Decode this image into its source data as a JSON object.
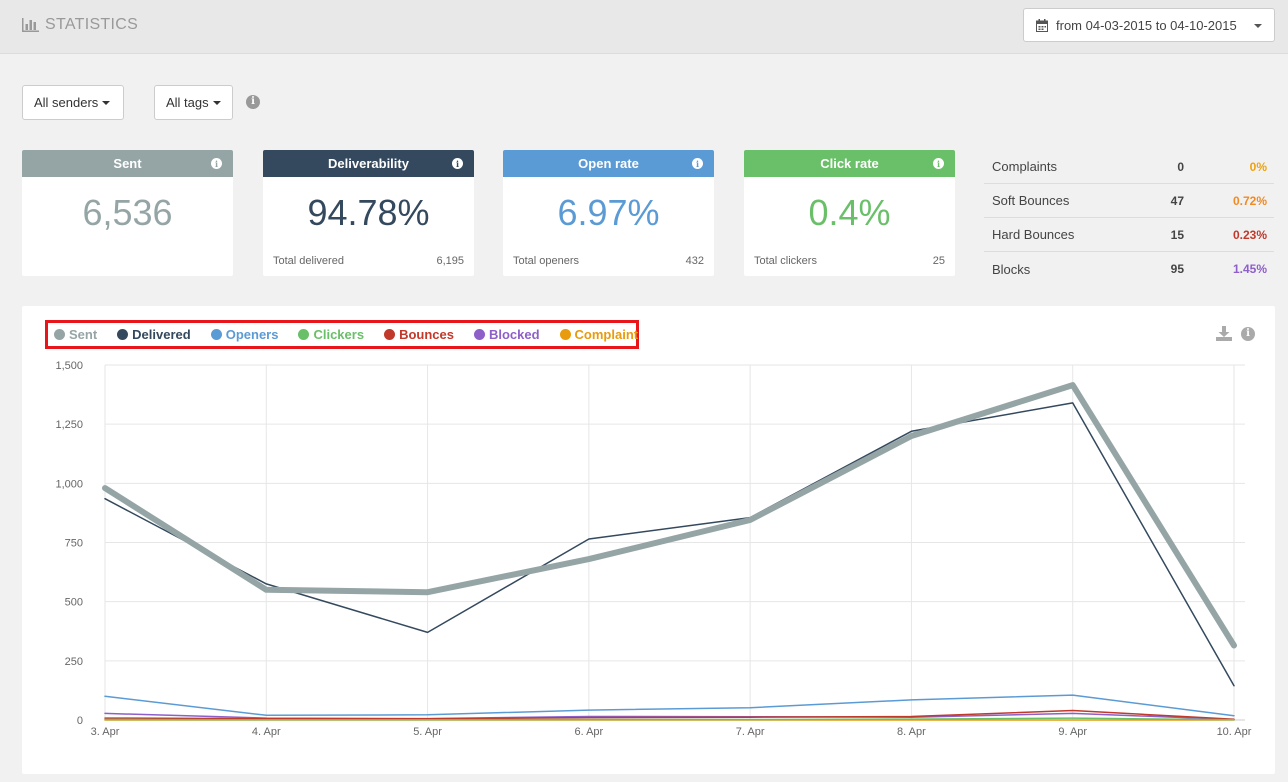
{
  "header": {
    "title": "STATISTICS",
    "date_range": "from 04-03-2015 to 04-10-2015"
  },
  "filters": {
    "senders": "All senders",
    "tags": "All tags"
  },
  "cards": [
    {
      "label": "Sent",
      "value": "6,536",
      "color": "#95a5a6",
      "foot_label": "",
      "foot_value": ""
    },
    {
      "label": "Deliverability",
      "value": "94.78%",
      "color": "#34495e",
      "foot_label": "Total delivered",
      "foot_value": "6,195"
    },
    {
      "label": "Open rate",
      "value": "6.97%",
      "color": "#5b9bd5",
      "foot_label": "Total openers",
      "foot_value": "432"
    },
    {
      "label": "Click rate",
      "value": "0.4%",
      "color": "#6abf69",
      "foot_label": "Total clickers",
      "foot_value": "25"
    }
  ],
  "side_stats": [
    {
      "label": "Complaints",
      "count": "0",
      "pct": "0%",
      "color": "#f0a30a"
    },
    {
      "label": "Soft Bounces",
      "count": "47",
      "pct": "0.72%",
      "color": "#f08a24"
    },
    {
      "label": "Hard Bounces",
      "count": "15",
      "pct": "0.23%",
      "color": "#c0392b"
    },
    {
      "label": "Blocks",
      "count": "95",
      "pct": "1.45%",
      "color": "#8e5fc9"
    }
  ],
  "legend": [
    {
      "name": "Sent",
      "color": "#95a5a6"
    },
    {
      "name": "Delivered",
      "color": "#34495e"
    },
    {
      "name": "Openers",
      "color": "#5b9bd5"
    },
    {
      "name": "Clickers",
      "color": "#6abf69"
    },
    {
      "name": "Bounces",
      "color": "#c0392b"
    },
    {
      "name": "Blocked",
      "color": "#8e5fc9"
    },
    {
      "name": "Complaint",
      "color": "#e89b0c"
    }
  ],
  "chart_data": {
    "type": "line",
    "categories": [
      "3. Apr",
      "4. Apr",
      "5. Apr",
      "6. Apr",
      "7. Apr",
      "8. Apr",
      "9. Apr",
      "10. Apr"
    ],
    "ylim": [
      0,
      1500
    ],
    "yticks": [
      "0",
      "250",
      "500",
      "750",
      "1,000",
      "1,250",
      "1,500"
    ],
    "grid": true,
    "series": [
      {
        "name": "Sent",
        "color": "#95a5a6",
        "width": 6,
        "values": [
          980,
          550,
          540,
          680,
          845,
          1200,
          1415,
          315
        ]
      },
      {
        "name": "Delivered",
        "color": "#34495e",
        "width": 1.5,
        "values": [
          935,
          575,
          370,
          765,
          855,
          1220,
          1340,
          145
        ]
      },
      {
        "name": "Openers",
        "color": "#5b9bd5",
        "width": 1.5,
        "values": [
          100,
          20,
          22,
          42,
          52,
          85,
          105,
          18
        ]
      },
      {
        "name": "Clickers",
        "color": "#6abf69",
        "width": 1.5,
        "values": [
          2,
          1,
          1,
          2,
          2,
          4,
          8,
          1
        ]
      },
      {
        "name": "Bounces",
        "color": "#c0392b",
        "width": 1.5,
        "values": [
          8,
          6,
          5,
          10,
          12,
          15,
          40,
          3
        ]
      },
      {
        "name": "Blocked",
        "color": "#8e5fc9",
        "width": 1.5,
        "values": [
          28,
          8,
          6,
          15,
          14,
          12,
          28,
          2
        ]
      },
      {
        "name": "Complaint",
        "color": "#e89b0c",
        "width": 1.5,
        "values": [
          0,
          0,
          0,
          0,
          0,
          0,
          0,
          0
        ]
      }
    ]
  }
}
